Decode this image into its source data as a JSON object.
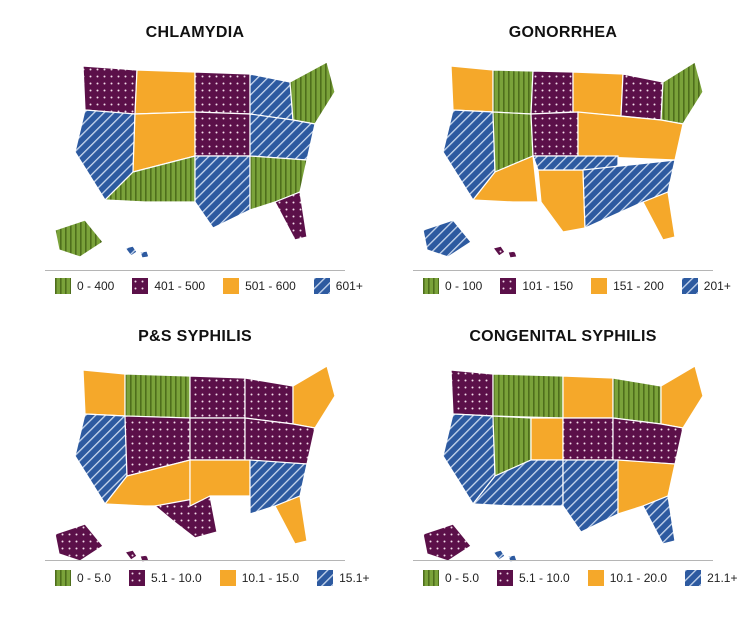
{
  "palette": {
    "green": "#7aa23a",
    "purple": "#5b1049",
    "orange": "#f5a82a",
    "blue": "#2d5aa0"
  },
  "maps": [
    {
      "title": "CHLAMYDIA",
      "legend": [
        {
          "label": "0 - 400",
          "pattern": "green-stripes"
        },
        {
          "label": "401 - 500",
          "pattern": "purple-dots"
        },
        {
          "label": "501 - 600",
          "pattern": "orange-solid"
        },
        {
          "label": "601+",
          "pattern": "blue-hatch"
        }
      ]
    },
    {
      "title": "GONORRHEA",
      "legend": [
        {
          "label": "0 - 100",
          "pattern": "green-stripes"
        },
        {
          "label": "101 - 150",
          "pattern": "purple-dots"
        },
        {
          "label": "151 - 200",
          "pattern": "orange-solid"
        },
        {
          "label": "201+",
          "pattern": "blue-hatch"
        }
      ]
    },
    {
      "title": "P&S SYPHILIS",
      "legend": [
        {
          "label": "0 - 5.0",
          "pattern": "green-stripes"
        },
        {
          "label": "5.1 - 10.0",
          "pattern": "purple-dots"
        },
        {
          "label": "10.1 - 15.0",
          "pattern": "orange-solid"
        },
        {
          "label": "15.1+",
          "pattern": "blue-hatch"
        }
      ]
    },
    {
      "title": "CONGENITAL SYPHILIS",
      "legend": [
        {
          "label": "0 - 5.0",
          "pattern": "green-stripes"
        },
        {
          "label": "5.1 - 10.0",
          "pattern": "purple-dots"
        },
        {
          "label": "10.1 - 20.0",
          "pattern": "orange-solid"
        },
        {
          "label": "21.1+",
          "pattern": "blue-hatch"
        }
      ]
    }
  ]
}
